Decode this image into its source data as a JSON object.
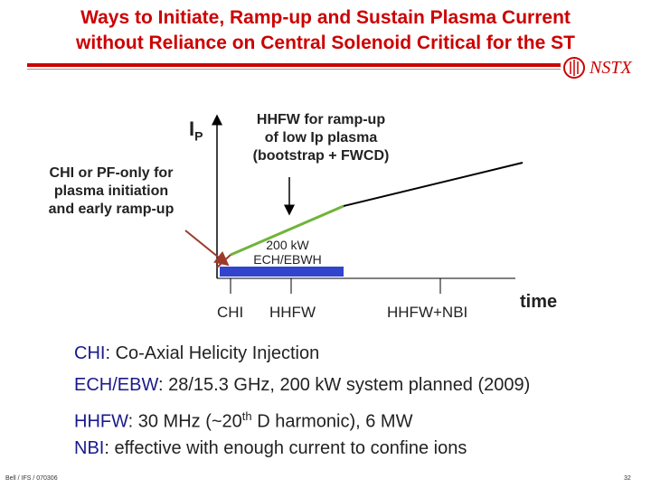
{
  "title": {
    "line1": "Ways to Initiate, Ramp-up and Sustain Plasma Current",
    "line2": "without Reliance on Central Solenoid Critical for the ST"
  },
  "logo_text": "NSTX",
  "diagram": {
    "y_axis_label_main": "I",
    "y_axis_label_sub": "P",
    "chi_label": [
      "CHI or PF-only for",
      "plasma initiation",
      "and early ramp-up"
    ],
    "hhfw_label": [
      "HHFW for ramp-up",
      "of low Ip plasma",
      "(bootstrap + FWCD)"
    ],
    "ech_label": [
      "200 kW",
      "ECH/EBWH"
    ],
    "ticks": [
      "CHI",
      "HHFW",
      "HHFW+NBI"
    ],
    "x_axis_label": "time"
  },
  "definitions": [
    {
      "term": "CHI",
      "text": ": Co-Axial Helicity Injection"
    },
    {
      "term": "ECH/EBW",
      "text": ": 28/15.3 GHz, 200 kW system planned (2009)"
    },
    {
      "term": "HHFW",
      "text": ": 30 MHz (~20",
      "sup": "th",
      "tail": " D harmonic), 6 MW"
    },
    {
      "term": "NBI",
      "text": ": effective with enough current to confine ions"
    }
  ],
  "footer": {
    "left": "Bell / IFS / 070306",
    "page": "32"
  },
  "colors": {
    "title": "#cc0000",
    "ramp_line": "#6fb43a",
    "ech_bar": "#3344cc",
    "arrow": "#9b3a2a"
  }
}
